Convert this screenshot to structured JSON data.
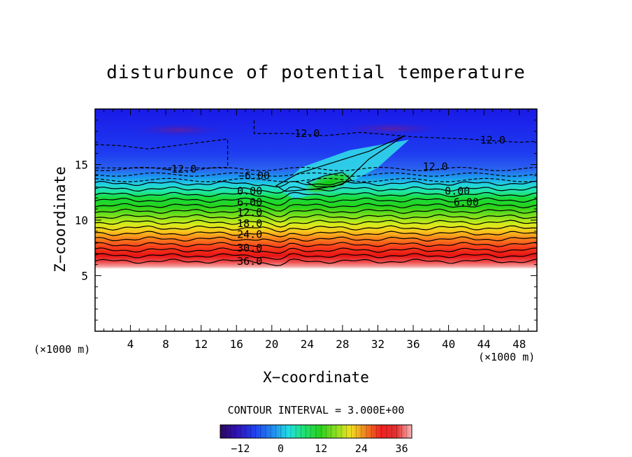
{
  "chart_data": {
    "type": "contour",
    "title": "disturbunce of potential temperature",
    "xlabel": "X−coordinate",
    "ylabel": "Z−coordinate",
    "x_unit_left": "(×1000 m)",
    "x_unit_right": "(×1000 m)",
    "xlim": [
      0,
      50
    ],
    "ylim": [
      0,
      20
    ],
    "x_ticks": [
      4,
      8,
      12,
      16,
      20,
      24,
      28,
      32,
      36,
      40,
      44,
      48
    ],
    "y_ticks": [
      5,
      10,
      15
    ],
    "grid": false,
    "contour_interval_label": "CONTOUR INTERVAL = 3.000E+00",
    "contour_interval": 3.0,
    "contour_labels": [
      {
        "text": "−12.0",
        "x": 9.7,
        "z": 14.6
      },
      {
        "text": "12.0",
        "x": 24.0,
        "z": 17.8
      },
      {
        "text": "12.0",
        "x": 38.5,
        "z": 14.8
      },
      {
        "text": "12.0",
        "x": 45.0,
        "z": 17.2
      },
      {
        "text": "−6.00",
        "x": 18.0,
        "z": 14.0
      },
      {
        "text": "0.00",
        "x": 17.5,
        "z": 12.6
      },
      {
        "text": "0.00",
        "x": 41.0,
        "z": 12.6
      },
      {
        "text": "6.00",
        "x": 17.5,
        "z": 11.6
      },
      {
        "text": "6.00",
        "x": 42.0,
        "z": 11.6
      },
      {
        "text": "12.0",
        "x": 17.5,
        "z": 10.7
      },
      {
        "text": "18.0",
        "x": 17.5,
        "z": 9.7
      },
      {
        "text": "24.0",
        "x": 17.5,
        "z": 8.7
      },
      {
        "text": "30.0",
        "x": 17.5,
        "z": 7.5
      },
      {
        "text": "36.0",
        "x": 17.5,
        "z": 6.3
      }
    ],
    "colorbar": {
      "min": -18,
      "max": 39,
      "ticks": [
        "−12",
        "0",
        "12",
        "24",
        "36"
      ],
      "tick_values": [
        -12,
        0,
        12,
        24,
        36
      ],
      "colormap": "rainbow (purple-blue-cyan-green-yellow-red-pink)"
    }
  }
}
